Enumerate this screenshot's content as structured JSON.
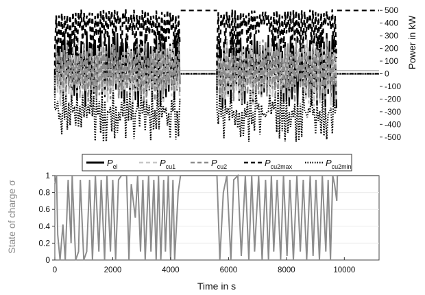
{
  "chart_data": [
    {
      "type": "line",
      "panel": "top",
      "ylabel": "Power in kW",
      "ylim": [
        -550,
        550
      ],
      "y_ticks": [
        500,
        400,
        300,
        200,
        100,
        0,
        -100,
        -200,
        -300,
        -400,
        -500
      ],
      "xlim": [
        0,
        11200
      ],
      "y_axis_side": "right",
      "series": [
        {
          "name": "P_el",
          "style": "solid",
          "color": "#000000"
        },
        {
          "name": "P_cu1",
          "style": "dashed",
          "color": "#c8c8c8"
        },
        {
          "name": "P_cu2",
          "style": "dashed",
          "color": "#8c8c8c"
        },
        {
          "name": "P_cu2max",
          "style": "dashed",
          "color": "#000000"
        },
        {
          "name": "P_cu2min",
          "style": "dotted",
          "color": "#000000"
        }
      ],
      "segments": [
        {
          "x0": 0,
          "x1": 4350,
          "active": true
        },
        {
          "x0": 4350,
          "x1": 5600,
          "active": false
        },
        {
          "x0": 5600,
          "x1": 9750,
          "active": true
        },
        {
          "x0": 9750,
          "x1": 11200,
          "active": false
        }
      ],
      "cu2max_idle_value": 500,
      "legend_location": "between panels"
    },
    {
      "type": "line",
      "panel": "bottom",
      "xlabel": "Time in s",
      "ylabel": "State of charge σ",
      "x_ticks": [
        0,
        2000,
        4000,
        6000,
        8000,
        10000
      ],
      "y_ticks": [
        1,
        0.8,
        0.6,
        0.4,
        0.2,
        0
      ],
      "xlim": [
        0,
        11200
      ],
      "ylim": [
        0,
        1
      ],
      "color": "#8c8c8c",
      "x": [
        0,
        60,
        100,
        180,
        280,
        360,
        460,
        560,
        600,
        720,
        820,
        880,
        1000,
        1100,
        1200,
        1300,
        1400,
        1520,
        1600,
        1720,
        1800,
        1920,
        2000,
        2100,
        2200,
        2300,
        2480,
        2560,
        2640,
        2780,
        2860,
        2960,
        3040,
        3120,
        3240,
        3320,
        3420,
        3500,
        3580,
        3660,
        3760,
        3820,
        3920,
        4000,
        4080,
        4140,
        4260,
        4340,
        4400,
        5600,
        5700,
        5820,
        5940,
        6080,
        6180,
        6320,
        6440,
        6580,
        6700,
        6800,
        6900,
        7040,
        7160,
        7280,
        7380,
        7480,
        7560,
        7680,
        7800,
        7900,
        8020,
        8120,
        8240,
        8360,
        8480,
        8580,
        8700,
        8820,
        8920,
        9020,
        9140,
        9240,
        9360,
        9440,
        9520,
        9600,
        9660,
        9700,
        9740,
        9760,
        11200
      ],
      "y": [
        0.9,
        1,
        0.3,
        0,
        0.42,
        0,
        0.95,
        0.2,
        1,
        0,
        0.1,
        0.95,
        0,
        0.1,
        0.95,
        0,
        1,
        0.1,
        0.95,
        0,
        1,
        0.1,
        0.95,
        0,
        0.95,
        1,
        1,
        0,
        0.9,
        0.5,
        1,
        0.1,
        0.95,
        0,
        1,
        0.1,
        0.95,
        0,
        1,
        0,
        0.95,
        0.1,
        1,
        0,
        0.95,
        0,
        0.8,
        1,
        1,
        1,
        0,
        0.8,
        1,
        0,
        0.95,
        1,
        0.05,
        1,
        0,
        1,
        0.1,
        1,
        0,
        0.95,
        0,
        1,
        0.1,
        0.95,
        0,
        1,
        0.05,
        0.95,
        0,
        1,
        0.1,
        0.95,
        0,
        1,
        0.05,
        0.95,
        0,
        1,
        0.1,
        0.95,
        0,
        1,
        0.9,
        0.8,
        0.7,
        1,
        1
      ]
    }
  ],
  "legend": {
    "items": [
      {
        "id": "el",
        "base": "P",
        "sub": "el",
        "style": "solid",
        "color": "#000000"
      },
      {
        "id": "cu1",
        "base": "P",
        "sub": "cu1",
        "style": "dashed",
        "color": "#c8c8c8"
      },
      {
        "id": "cu2",
        "base": "P",
        "sub": "cu2",
        "style": "dashed",
        "color": "#8c8c8c"
      },
      {
        "id": "cu2max",
        "base": "P",
        "sub": "cu2max",
        "style": "dashed",
        "color": "#000000"
      },
      {
        "id": "cu2min",
        "base": "P",
        "sub": "cu2min",
        "style": "dotted",
        "color": "#000000"
      }
    ]
  },
  "labels": {
    "top_ylabel": "Power in kW",
    "bottom_ylabel": "State of charge σ",
    "xlabel": "Time in s"
  }
}
